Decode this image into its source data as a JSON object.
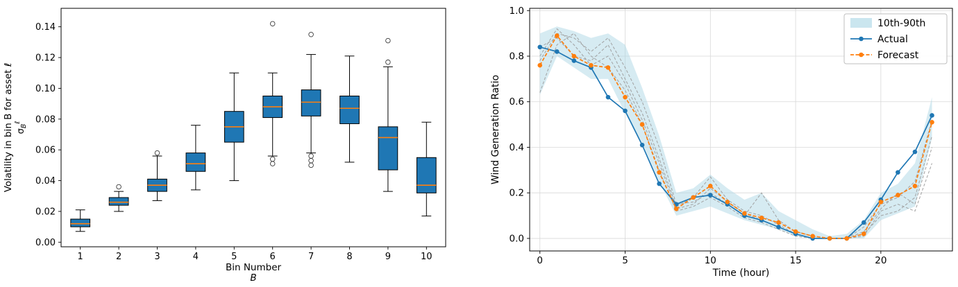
{
  "figure": {
    "background": "#ffffff"
  },
  "chart_data": [
    {
      "id": "volatility-boxplot",
      "type": "boxplot",
      "title": "",
      "xlabel": "Bin Number",
      "xlabel_line2": "B",
      "ylabel": "Volatility in bin B for asset ℓ",
      "ylabel_math": {
        "base": "σ",
        "sub": "B",
        "sup": "ℓ"
      },
      "ylim": [
        -0.003,
        0.152
      ],
      "ytick_vals": [
        0.0,
        0.02,
        0.04,
        0.06,
        0.08,
        0.1,
        0.12,
        0.14
      ],
      "ytick_labels": [
        "0.00",
        "0.02",
        "0.04",
        "0.06",
        "0.08",
        "0.10",
        "0.12",
        "0.14"
      ],
      "categories": [
        "1",
        "2",
        "3",
        "4",
        "5",
        "6",
        "7",
        "8",
        "9",
        "10"
      ],
      "box_color": "#1f77b4",
      "median_color": "#ff7f0e",
      "grid": false,
      "boxes": [
        {
          "whislo": 0.007,
          "q1": 0.01,
          "med": 0.012,
          "q3": 0.015,
          "whishi": 0.021,
          "fliers": []
        },
        {
          "whislo": 0.02,
          "q1": 0.024,
          "med": 0.026,
          "q3": 0.029,
          "whishi": 0.033,
          "fliers": [
            0.036
          ]
        },
        {
          "whislo": 0.027,
          "q1": 0.033,
          "med": 0.037,
          "q3": 0.041,
          "whishi": 0.056,
          "fliers": [
            0.058
          ]
        },
        {
          "whislo": 0.034,
          "q1": 0.046,
          "med": 0.051,
          "q3": 0.058,
          "whishi": 0.076,
          "fliers": []
        },
        {
          "whislo": 0.04,
          "q1": 0.065,
          "med": 0.075,
          "q3": 0.085,
          "whishi": 0.11,
          "fliers": []
        },
        {
          "whislo": 0.056,
          "q1": 0.081,
          "med": 0.088,
          "q3": 0.095,
          "whishi": 0.11,
          "fliers": [
            0.142,
            0.054,
            0.051
          ]
        },
        {
          "whislo": 0.058,
          "q1": 0.082,
          "med": 0.091,
          "q3": 0.099,
          "whishi": 0.122,
          "fliers": [
            0.135,
            0.056,
            0.053,
            0.05
          ]
        },
        {
          "whislo": 0.052,
          "q1": 0.077,
          "med": 0.087,
          "q3": 0.095,
          "whishi": 0.121,
          "fliers": []
        },
        {
          "whislo": 0.033,
          "q1": 0.047,
          "med": 0.068,
          "q3": 0.075,
          "whishi": 0.114,
          "fliers": [
            0.131,
            0.117
          ]
        },
        {
          "whislo": 0.017,
          "q1": 0.032,
          "med": 0.037,
          "q3": 0.055,
          "whishi": 0.078,
          "fliers": []
        }
      ]
    },
    {
      "id": "wind-generation",
      "type": "line",
      "title": "",
      "xlabel": "Time (hour)",
      "ylabel": "Wind Generation Ratio",
      "xlim": [
        -0.6,
        24.2
      ],
      "ylim": [
        -0.055,
        1.01
      ],
      "xtick_vals": [
        0,
        5,
        10,
        15,
        20
      ],
      "xtick_labels": [
        "0",
        "5",
        "10",
        "15",
        "20"
      ],
      "ytick_vals": [
        0.0,
        0.2,
        0.4,
        0.6,
        0.8,
        1.0
      ],
      "ytick_labels": [
        "0.0",
        "0.2",
        "0.4",
        "0.6",
        "0.8",
        "1.0"
      ],
      "grid": true,
      "x": [
        0,
        1,
        2,
        3,
        4,
        5,
        6,
        7,
        8,
        9,
        10,
        11,
        12,
        13,
        14,
        15,
        16,
        17,
        18,
        19,
        20,
        21,
        22,
        23
      ],
      "band": {
        "name": "10th-90th",
        "color": "#add8e6",
        "opacity": 0.5,
        "lower": [
          0.63,
          0.8,
          0.75,
          0.7,
          0.7,
          0.55,
          0.42,
          0.25,
          0.1,
          0.12,
          0.14,
          0.11,
          0.08,
          0.06,
          0.04,
          0.01,
          0.0,
          0.0,
          0.0,
          0.0,
          0.08,
          0.11,
          0.14,
          0.44
        ],
        "upper": [
          0.9,
          0.93,
          0.91,
          0.88,
          0.9,
          0.85,
          0.66,
          0.45,
          0.2,
          0.22,
          0.28,
          0.22,
          0.17,
          0.2,
          0.12,
          0.08,
          0.04,
          0.01,
          0.02,
          0.08,
          0.2,
          0.24,
          0.33,
          0.62
        ]
      },
      "series": [
        {
          "name": "Actual",
          "color": "#1f77b4",
          "dashed": false,
          "values": [
            0.84,
            0.82,
            0.78,
            0.75,
            0.62,
            0.56,
            0.41,
            0.24,
            0.15,
            0.18,
            0.19,
            0.15,
            0.1,
            0.08,
            0.05,
            0.02,
            0.0,
            0.0,
            0.0,
            0.07,
            0.17,
            0.29,
            0.38,
            0.54
          ]
        },
        {
          "name": "Forecast",
          "color": "#ff7f0e",
          "dashed": true,
          "values": [
            0.76,
            0.89,
            0.8,
            0.76,
            0.75,
            0.62,
            0.5,
            0.29,
            0.13,
            0.18,
            0.23,
            0.16,
            0.11,
            0.09,
            0.07,
            0.03,
            0.01,
            0.0,
            0.0,
            0.02,
            0.16,
            0.19,
            0.23,
            0.51
          ]
        }
      ],
      "scenarios": {
        "color": "#a0a0a0",
        "dashed": true,
        "lines": [
          [
            0.78,
            0.9,
            0.88,
            0.82,
            0.88,
            0.75,
            0.6,
            0.4,
            0.15,
            0.16,
            0.2,
            0.15,
            0.1,
            0.2,
            0.08,
            0.03,
            0.01,
            0.0,
            0.0,
            0.01,
            0.12,
            0.15,
            0.12,
            0.33
          ],
          [
            0.84,
            0.88,
            0.8,
            0.78,
            0.85,
            0.7,
            0.55,
            0.35,
            0.14,
            0.18,
            0.27,
            0.17,
            0.12,
            0.1,
            0.06,
            0.02,
            0.0,
            0.0,
            0.0,
            0.05,
            0.15,
            0.18,
            0.25,
            0.52
          ],
          [
            0.64,
            0.85,
            0.9,
            0.8,
            0.75,
            0.65,
            0.5,
            0.3,
            0.12,
            0.14,
            0.18,
            0.14,
            0.09,
            0.07,
            0.04,
            0.01,
            0.0,
            0.0,
            0.0,
            0.02,
            0.1,
            0.12,
            0.18,
            0.45
          ],
          [
            0.8,
            0.92,
            0.85,
            0.76,
            0.8,
            0.68,
            0.52,
            0.33,
            0.13,
            0.15,
            0.22,
            0.16,
            0.11,
            0.08,
            0.05,
            0.02,
            0.0,
            0.0,
            0.0,
            0.03,
            0.13,
            0.2,
            0.15,
            0.4
          ]
        ]
      },
      "legend": {
        "entries": [
          {
            "type": "patch",
            "label": "10th-90th",
            "color": "#add8e6",
            "dashed": false
          },
          {
            "type": "line",
            "label": "Actual",
            "color": "#1f77b4",
            "dashed": false
          },
          {
            "type": "line",
            "label": "Forecast",
            "color": "#ff7f0e",
            "dashed": true
          }
        ]
      }
    }
  ]
}
